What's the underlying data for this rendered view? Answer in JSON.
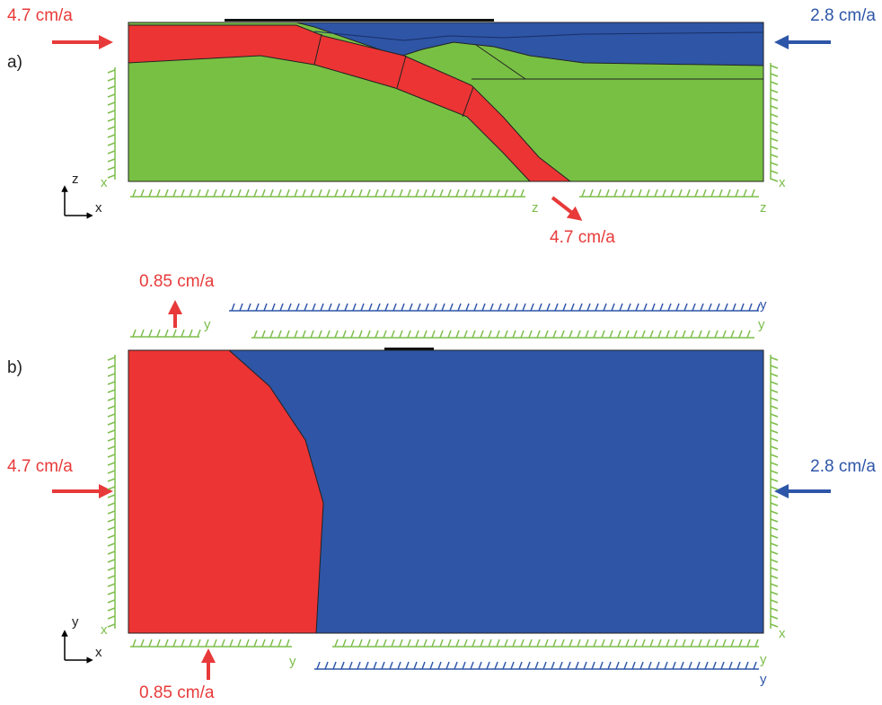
{
  "panel_a": {
    "label": "a)",
    "velocity_left": "4.7 cm/a",
    "velocity_right": "2.8 cm/a",
    "velocity_slab": "4.7 cm/a",
    "axes": {
      "vertical": "z",
      "horizontal": "x"
    },
    "boundary_labels": {
      "left": "x",
      "right": "x",
      "bottom_left": "z",
      "bottom_right": "z"
    }
  },
  "panel_b": {
    "label": "b)",
    "velocity_left": "4.7 cm/a",
    "velocity_right": "2.8 cm/a",
    "velocity_top": "0.85 cm/a",
    "velocity_bottom": "0.85 cm/a",
    "axes": {
      "vertical": "y",
      "horizontal": "x"
    },
    "boundary_labels": {
      "left": "x",
      "right": "x",
      "top_left": "y",
      "top_right_upper": "y",
      "top_right_lower": "y",
      "bottom_left": "y",
      "bottom_right_upper": "y",
      "bottom_right_lower": "y"
    }
  }
}
